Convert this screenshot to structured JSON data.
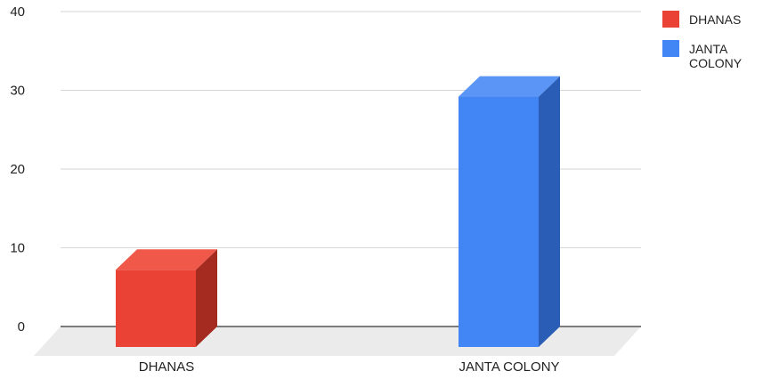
{
  "chart_data": {
    "type": "bar",
    "style": "3d-columns",
    "categories": [
      "DHANAS",
      "JANTA COLONY"
    ],
    "series": [
      {
        "name": "DHANAS",
        "color": "#ea4335",
        "side_color": "#a52a20",
        "top_color": "#f0584a",
        "values": [
          8.5,
          null
        ]
      },
      {
        "name": "JANTA COLONY",
        "color": "#4285f4",
        "side_color": "#2a5db5",
        "top_color": "#5b96f6",
        "values": [
          null,
          30.5
        ]
      }
    ],
    "ylim": [
      0,
      40
    ],
    "yticks": [
      {
        "value": 0,
        "label": "0"
      },
      {
        "value": 10,
        "label": "10"
      },
      {
        "value": 20,
        "label": "20"
      },
      {
        "value": 30,
        "label": "30"
      },
      {
        "value": 40,
        "label": "40"
      }
    ],
    "grid": true,
    "legend": {
      "placement": "right",
      "entries": [
        {
          "lines": [
            "DHANAS"
          ],
          "color": "#ea4335"
        },
        {
          "lines": [
            "JANTA",
            "COLONY"
          ],
          "color": "#4285f4"
        }
      ]
    },
    "title": "",
    "xlabel": "",
    "ylabel": ""
  }
}
